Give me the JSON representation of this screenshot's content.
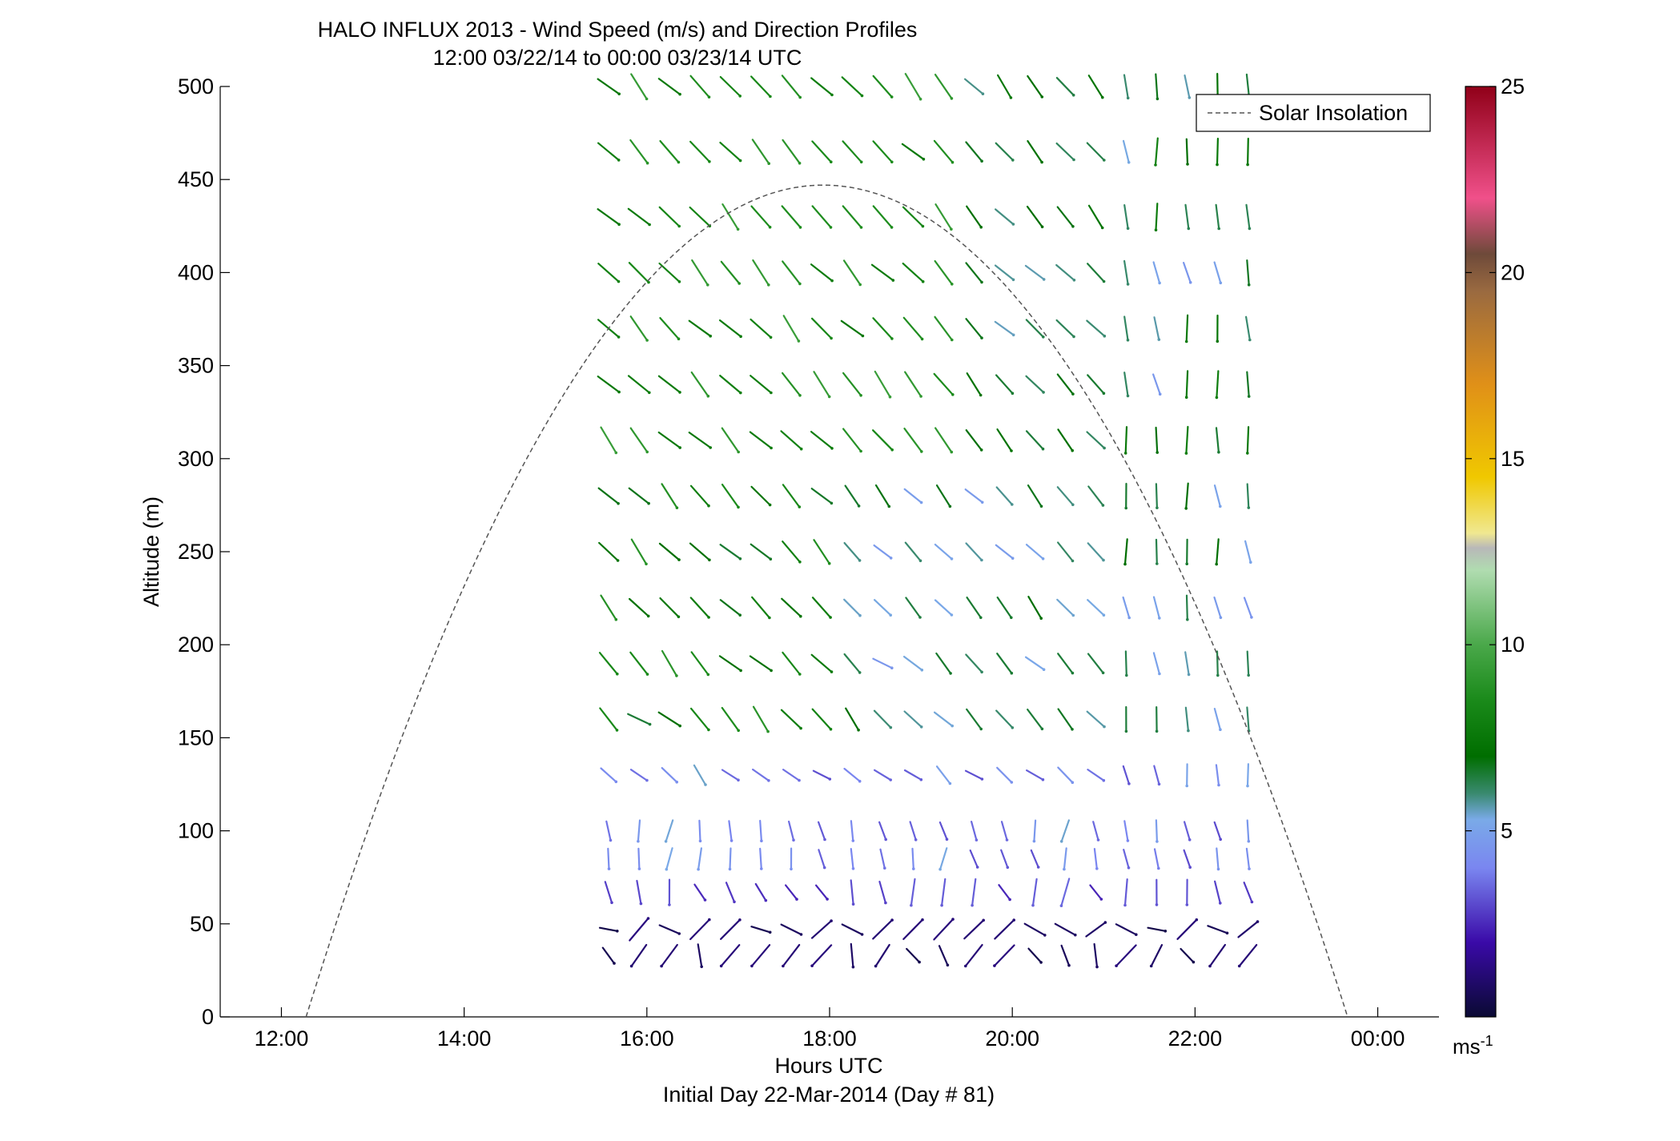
{
  "chart_data": {
    "type": "wind-barb-profile",
    "title": "HALO INFLUX 2013 - Wind Speed (m/s) and Direction Profiles",
    "subtitle": "12:00 03/22/14 to 00:00 03/23/14  UTC",
    "xlabel": "Hours UTC",
    "xlabel2": "Initial Day 22-Mar-2014 (Day # 81)",
    "ylabel": "Altitude (m)",
    "xlim": [
      11.33,
      24.67
    ],
    "ylim": [
      0,
      500
    ],
    "x_ticks": [
      12,
      14,
      16,
      18,
      20,
      22,
      24
    ],
    "x_tick_labels": [
      "12:00",
      "14:00",
      "16:00",
      "18:00",
      "20:00",
      "22:00",
      "00:00"
    ],
    "y_ticks": [
      0,
      50,
      100,
      150,
      200,
      250,
      300,
      350,
      400,
      450,
      500
    ],
    "y_tick_labels": [
      "0",
      "50",
      "100",
      "150",
      "200",
      "250",
      "300",
      "350",
      "400",
      "450",
      "500"
    ],
    "legend": {
      "label": "Solar Insolation",
      "location": "top-right",
      "style": "dashed"
    },
    "solar_insolation": {
      "start_hour": 12.27,
      "peak_hour": 17.93,
      "peak_altitude": 447,
      "end_hour": 23.67
    },
    "colorbar": {
      "label": "ms",
      "label_exponent": "-1",
      "range": [
        0,
        25
      ],
      "ticks": [
        5,
        10,
        15,
        20,
        25
      ],
      "tick_labels": [
        "5",
        "10",
        "15",
        "20",
        "25"
      ],
      "stops": [
        {
          "value": 0,
          "color": "#0a0a33"
        },
        {
          "value": 2,
          "color": "#3a0aa8"
        },
        {
          "value": 4,
          "color": "#7a86f0"
        },
        {
          "value": 5.3,
          "color": "#7aaae8"
        },
        {
          "value": 6,
          "color": "#3a8a70"
        },
        {
          "value": 7,
          "color": "#006e00"
        },
        {
          "value": 8.5,
          "color": "#1a8a1a"
        },
        {
          "value": 10,
          "color": "#4aa84a"
        },
        {
          "value": 12,
          "color": "#b0dcb0"
        },
        {
          "value": 12.6,
          "color": "#b8b8b8"
        },
        {
          "value": 13,
          "color": "#f0e890"
        },
        {
          "value": 14.5,
          "color": "#f0c800"
        },
        {
          "value": 17,
          "color": "#e09018"
        },
        {
          "value": 19.5,
          "color": "#9a6a40"
        },
        {
          "value": 20.5,
          "color": "#6e4a3a"
        },
        {
          "value": 22,
          "color": "#f0508a"
        },
        {
          "value": 25,
          "color": "#900018"
        }
      ]
    },
    "wind_grid": {
      "hours_start": 15.58,
      "hours_step": 0.3333,
      "columns": 22,
      "upper_altitudes": [
        500,
        465,
        430,
        400,
        370,
        340,
        310,
        280,
        250,
        220,
        190,
        160,
        130,
        100,
        85
      ],
      "surface_altitudes": [
        67,
        47,
        33
      ]
    },
    "sample_wind_vectors": [
      {
        "altitude": 500,
        "direction_deg": 330,
        "speed_ms": 8
      },
      {
        "altitude": 400,
        "direction_deg": 320,
        "speed_ms": 8
      },
      {
        "altitude": 300,
        "direction_deg": 330,
        "speed_ms": 7
      },
      {
        "altitude": 200,
        "direction_deg": 325,
        "speed_ms": 6
      },
      {
        "altitude": 100,
        "direction_deg": 320,
        "speed_ms": 5
      },
      {
        "altitude": 50,
        "direction_deg": 290,
        "speed_ms": 1
      }
    ]
  }
}
